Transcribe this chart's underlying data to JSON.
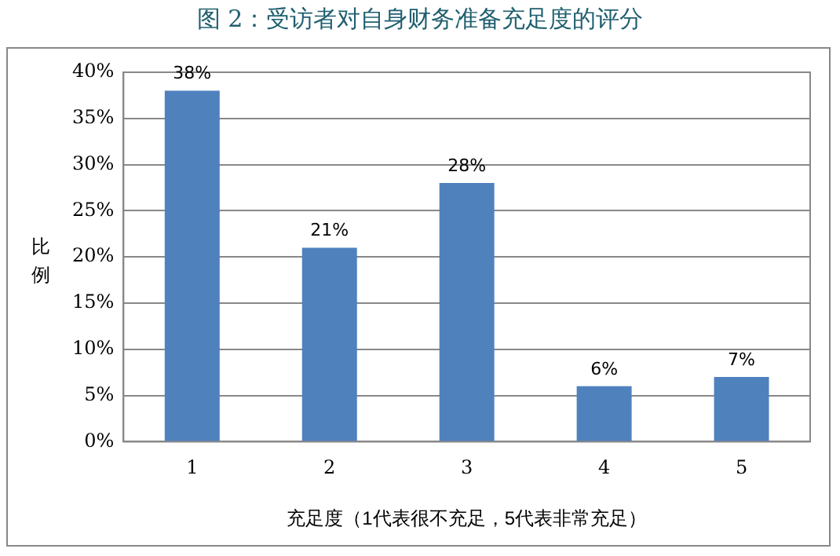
{
  "chart_data": {
    "type": "bar",
    "title": "图 2：受访者对自身财务准备充足度的评分",
    "xlabel": "充足度（1代表很不充足，5代表非常充足）",
    "ylabel": "比例",
    "categories": [
      "1",
      "2",
      "3",
      "4",
      "5"
    ],
    "values": [
      38,
      21,
      28,
      6,
      7
    ],
    "value_labels": [
      "38%",
      "21%",
      "28%",
      "6%",
      "7%"
    ],
    "color": "#4f81bd",
    "ylim": [
      0,
      40
    ],
    "yticks": [
      {
        "value": 0,
        "label": "0%"
      },
      {
        "value": 5,
        "label": "5%"
      },
      {
        "value": 10,
        "label": "10%"
      },
      {
        "value": 15,
        "label": "15%"
      },
      {
        "value": 20,
        "label": "20%"
      },
      {
        "value": 25,
        "label": "25%"
      },
      {
        "value": 30,
        "label": "30%"
      },
      {
        "value": 35,
        "label": "35%"
      },
      {
        "value": 40,
        "label": "40%"
      }
    ],
    "grid": "y",
    "legend": false
  }
}
